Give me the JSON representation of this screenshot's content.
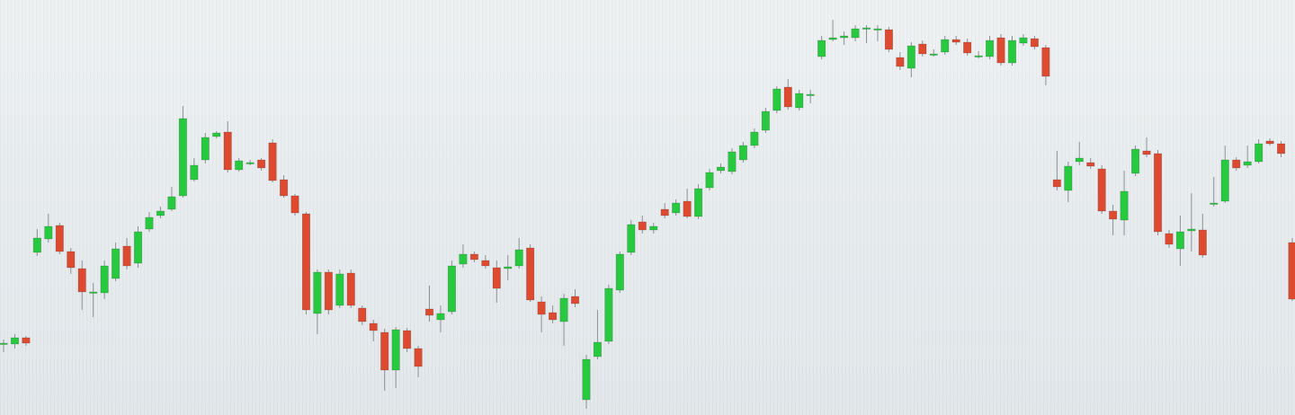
{
  "chart_data": {
    "type": "candlestick",
    "up_color": "#27c93f",
    "down_color": "#dd4a2f",
    "ylim": [
      0,
      462
    ],
    "open": [
      80,
      79,
      86,
      181,
      196,
      211,
      182,
      163,
      137,
      136,
      152,
      188,
      169,
      207,
      222,
      229,
      244,
      262,
      284,
      310,
      315,
      273,
      281,
      284,
      303,
      262,
      244,
      224,
      113,
      159,
      122,
      158,
      119,
      102,
      92,
      50,
      94,
      74,
      118,
      106,
      115,
      168,
      179,
      172,
      164,
      163,
      166,
      186,
      126,
      114,
      104,
      132,
      17,
      65,
      82,
      139,
      181,
      215,
      206,
      229,
      225,
      238,
      221,
      253,
      272,
      271,
      284,
      300,
      317,
      339,
      365,
      342,
      357,
      399,
      418,
      420,
      420,
      430,
      430,
      429,
      398,
      386,
      413,
      402,
      404,
      418,
      415,
      400,
      399,
      420,
      392,
      414,
      419,
      409,
      262,
      250,
      282,
      281,
      274,
      227,
      217,
      269,
      294,
      291,
      202,
      185,
      205,
      206,
      236,
      238,
      284,
      278,
      282,
      305,
      302,
      192
    ],
    "close": [
      80,
      86,
      80,
      197,
      210,
      182,
      164,
      137,
      137,
      166,
      185,
      166,
      204,
      220,
      227,
      243,
      330,
      278,
      309,
      314,
      273,
      283,
      281,
      275,
      261,
      244,
      225,
      117,
      159,
      117,
      157,
      122,
      104,
      94,
      50,
      95,
      74,
      54,
      111,
      113,
      166,
      179,
      173,
      166,
      141,
      165,
      184,
      128,
      112,
      106,
      130,
      124,
      62,
      81,
      141,
      179,
      212,
      206,
      210,
      222,
      236,
      221,
      252,
      270,
      276,
      293,
      300,
      315,
      338,
      363,
      343,
      358,
      357,
      417,
      420,
      422,
      430,
      431,
      430,
      407,
      388,
      411,
      402,
      402,
      418,
      415,
      403,
      400,
      417,
      392,
      417,
      420,
      410,
      377,
      254,
      277,
      286,
      277,
      227,
      218,
      249,
      296,
      290,
      204,
      190,
      204,
      207,
      178,
      236,
      284,
      275,
      282,
      302,
      302,
      291,
      129
    ],
    "high": [
      84,
      90,
      88,
      207,
      224,
      214,
      186,
      172,
      147,
      172,
      192,
      197,
      210,
      226,
      232,
      254,
      344,
      286,
      314,
      316,
      327,
      286,
      284,
      286,
      307,
      267,
      246,
      226,
      162,
      162,
      162,
      162,
      122,
      106,
      96,
      98,
      97,
      77,
      144,
      122,
      172,
      190,
      182,
      178,
      172,
      178,
      197,
      190,
      132,
      122,
      135,
      140,
      67,
      117,
      145,
      182,
      217,
      222,
      214,
      236,
      240,
      252,
      257,
      274,
      280,
      297,
      304,
      319,
      342,
      366,
      374,
      362,
      362,
      422,
      440,
      427,
      434,
      434,
      434,
      432,
      404,
      415,
      417,
      407,
      422,
      422,
      419,
      405,
      422,
      424,
      422,
      424,
      422,
      412,
      294,
      282,
      304,
      286,
      278,
      234,
      272,
      300,
      309,
      295,
      206,
      222,
      247,
      224,
      265,
      300,
      287,
      300,
      307,
      308,
      305,
      197
    ],
    "low": [
      70,
      74,
      77,
      177,
      192,
      179,
      157,
      117,
      109,
      129,
      149,
      162,
      164,
      204,
      219,
      227,
      242,
      260,
      280,
      308,
      270,
      271,
      278,
      272,
      259,
      242,
      222,
      112,
      90,
      112,
      119,
      119,
      100,
      82,
      27,
      30,
      70,
      42,
      104,
      92,
      112,
      164,
      170,
      163,
      125,
      150,
      163,
      126,
      92,
      102,
      77,
      120,
      7,
      62,
      79,
      136,
      178,
      202,
      202,
      219,
      222,
      219,
      218,
      250,
      269,
      268,
      281,
      297,
      314,
      336,
      340,
      339,
      347,
      396,
      416,
      412,
      416,
      414,
      416,
      404,
      384,
      376,
      399,
      399,
      401,
      412,
      400,
      397,
      396,
      389,
      389,
      411,
      407,
      367,
      250,
      237,
      278,
      274,
      224,
      200,
      200,
      266,
      287,
      200,
      186,
      166,
      182,
      175,
      232,
      236,
      272,
      275,
      280,
      300,
      287,
      127
    ]
  }
}
